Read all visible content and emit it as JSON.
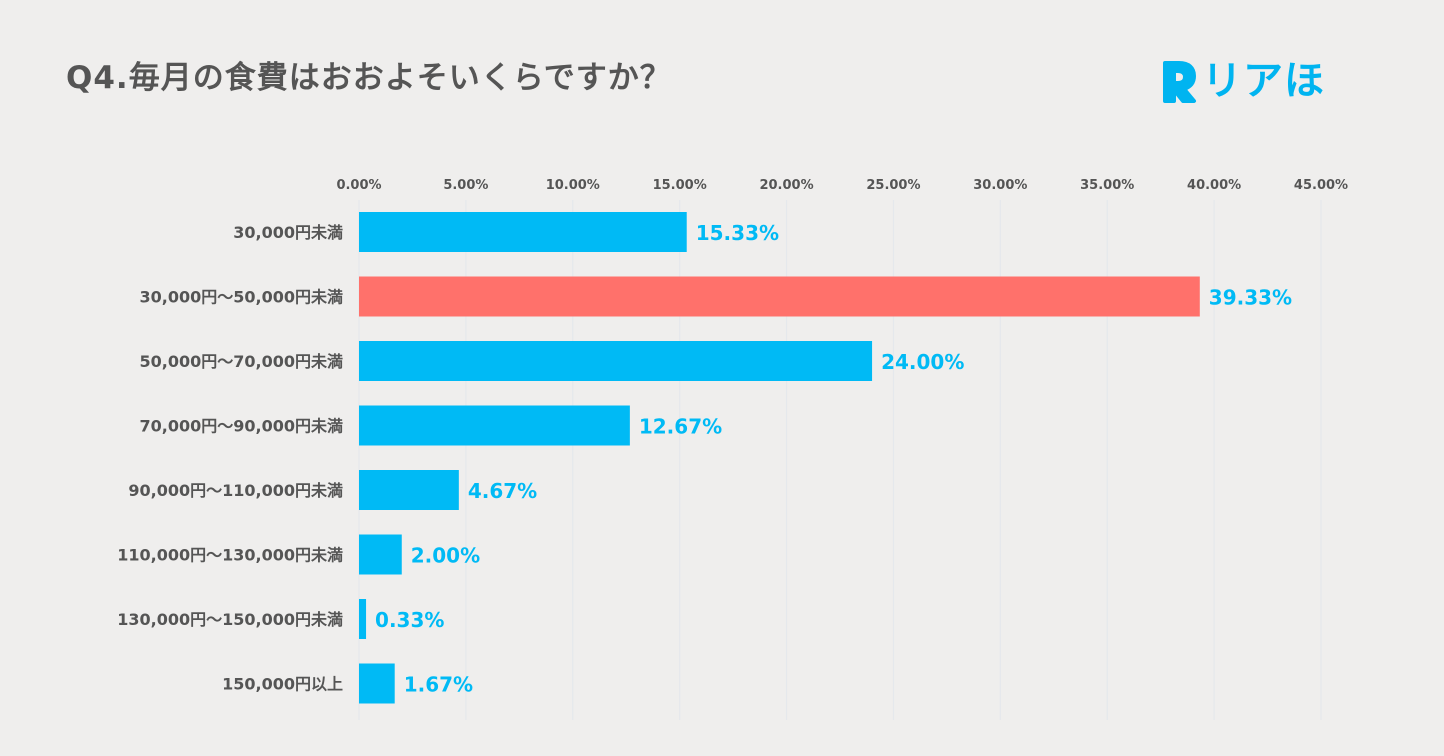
{
  "title": "Q4.毎月の食費はおおよそいくらですか？",
  "brand": {
    "name": "リアほ",
    "mark_icon": "rounded-R-logo-icon",
    "color": "#00b4f0"
  },
  "chart_data": {
    "type": "bar",
    "orientation": "horizontal",
    "title": "Q4.毎月の食費はおおよそいくらですか？",
    "xlabel": "",
    "ylabel": "",
    "xlim": [
      0,
      45
    ],
    "grid": true,
    "legend": "none",
    "axis_position": "top",
    "ticks": [
      "0.00%",
      "5.00%",
      "10.00%",
      "15.00%",
      "20.00%",
      "25.00%",
      "30.00%",
      "35.00%",
      "40.00%",
      "45.00%"
    ],
    "categories": [
      "30,000円未満",
      "30,000円～50,000円未満",
      "50,000円～70,000円未満",
      "70,000円～90,000円未満",
      "90,000円～110,000円未満",
      "110,000円～130,000円未満",
      "130,000円～150,000円未満",
      "150,000円以上"
    ],
    "values": [
      15.33,
      39.33,
      24.0,
      12.67,
      4.67,
      2.0,
      0.33,
      1.67
    ],
    "value_labels": [
      "15.33%",
      "39.33%",
      "24.00%",
      "12.67%",
      "4.67%",
      "2.00%",
      "0.33%",
      "1.67%"
    ],
    "colors": {
      "default": "#00baf5",
      "highlight": "#ff716b",
      "label_default": "#00baf5",
      "label_highlight": "#00baf5",
      "grid": "#e5e8ec"
    },
    "highlight_index": 1
  }
}
